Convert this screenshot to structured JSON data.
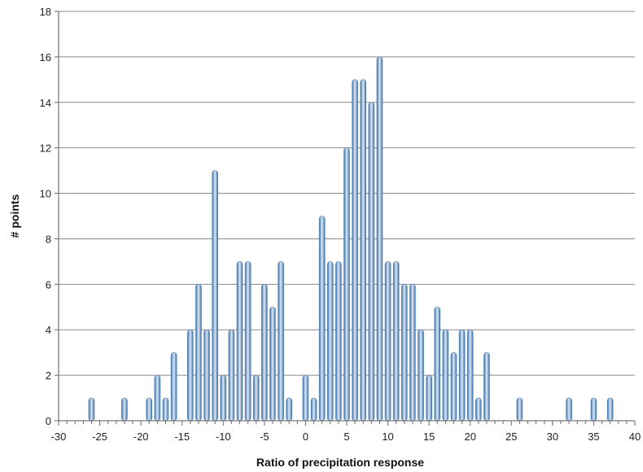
{
  "chart_data": {
    "type": "bar",
    "title": "",
    "xlabel": "Ratio of precipitation response",
    "ylabel": "# points",
    "xlim": [
      -30,
      40
    ],
    "ylim": [
      0,
      18
    ],
    "x_ticks": [
      -30,
      -25,
      -20,
      -15,
      -10,
      -5,
      0,
      5,
      10,
      15,
      20,
      25,
      30,
      35,
      40
    ],
    "y_ticks": [
      0,
      2,
      4,
      6,
      8,
      10,
      12,
      14,
      16,
      18
    ],
    "grid": "horizontal",
    "bar_color": "#4a7fb5",
    "x": [
      -26,
      -22,
      -19,
      -18,
      -17,
      -16,
      -14,
      -13,
      -12,
      -11,
      -10,
      -9,
      -8,
      -7,
      -6,
      -5,
      -4,
      -3,
      -2,
      0,
      1,
      2,
      3,
      4,
      5,
      6,
      7,
      8,
      9,
      10,
      11,
      12,
      13,
      14,
      15,
      16,
      17,
      18,
      19,
      20,
      21,
      22,
      26,
      32,
      35,
      37
    ],
    "values": [
      1,
      1,
      1,
      2,
      1,
      3,
      4,
      6,
      4,
      11,
      2,
      4,
      7,
      7,
      2,
      6,
      5,
      7,
      1,
      2,
      1,
      9,
      7,
      7,
      12,
      15,
      15,
      14,
      16,
      7,
      7,
      6,
      6,
      4,
      2,
      5,
      4,
      3,
      4,
      4,
      1,
      3,
      1,
      1,
      1,
      1
    ]
  }
}
